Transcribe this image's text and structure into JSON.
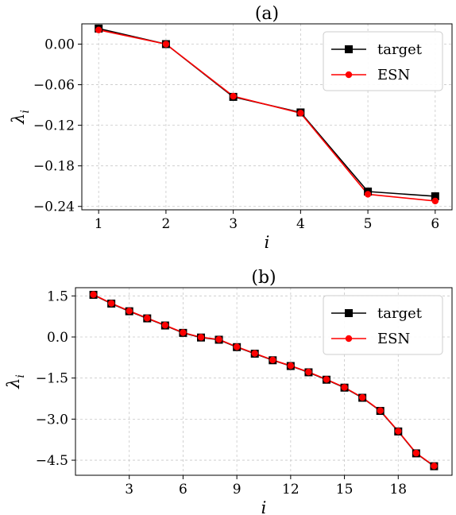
{
  "chart_data": [
    {
      "type": "line",
      "title": "(a)",
      "xlabel": "i",
      "ylabel": "λ",
      "ylabel_sub": "i",
      "xlim": [
        0.75,
        6.25
      ],
      "ylim": [
        -0.245,
        0.03
      ],
      "xticks": [
        1,
        2,
        3,
        4,
        5,
        6
      ],
      "xtick_labels": [
        "1",
        "2",
        "3",
        "4",
        "5",
        "6"
      ],
      "yticks": [
        0.0,
        -0.06,
        -0.12,
        -0.18,
        -0.24
      ],
      "ytick_labels": [
        "0.00",
        "−0.06",
        "−0.12",
        "−0.18",
        "−0.24"
      ],
      "grid": true,
      "legend_position": "top-right",
      "x": [
        1,
        2,
        3,
        4,
        5,
        6
      ],
      "series": [
        {
          "name": "target",
          "color": "#000000",
          "marker": "square",
          "values": [
            0.023,
            0.0,
            -0.078,
            -0.101,
            -0.218,
            -0.225
          ]
        },
        {
          "name": "ESN",
          "color": "#ff0000",
          "marker": "circle",
          "values": [
            0.021,
            0.0,
            -0.077,
            -0.102,
            -0.222,
            -0.232
          ]
        }
      ]
    },
    {
      "type": "line",
      "title": "(b)",
      "xlabel": "i",
      "ylabel": "λ",
      "ylabel_sub": "i",
      "xlim": [
        0.0,
        21.0
      ],
      "ylim": [
        -5.05,
        1.8
      ],
      "xticks": [
        3,
        6,
        9,
        12,
        15,
        18
      ],
      "xtick_labels": [
        "3",
        "6",
        "9",
        "12",
        "15",
        "18"
      ],
      "yticks": [
        1.5,
        0.0,
        -1.5,
        -3.0,
        -4.5
      ],
      "ytick_labels": [
        "1.5",
        "0.0",
        "−1.5",
        "−3.0",
        "−4.5"
      ],
      "grid": true,
      "legend_position": "top-right",
      "x": [
        1,
        2,
        3,
        4,
        5,
        6,
        7,
        8,
        9,
        10,
        11,
        12,
        13,
        14,
        15,
        16,
        17,
        18,
        19,
        20
      ],
      "series": [
        {
          "name": "target",
          "color": "#000000",
          "marker": "square",
          "values": [
            1.54,
            1.22,
            0.94,
            0.68,
            0.42,
            0.15,
            -0.02,
            -0.1,
            -0.37,
            -0.61,
            -0.85,
            -1.06,
            -1.29,
            -1.56,
            -1.85,
            -2.22,
            -2.7,
            -3.45,
            -4.25,
            -4.72
          ]
        },
        {
          "name": "ESN",
          "color": "#ff0000",
          "marker": "circle",
          "values": [
            1.55,
            1.23,
            0.95,
            0.69,
            0.43,
            0.16,
            -0.01,
            -0.09,
            -0.36,
            -0.6,
            -0.84,
            -1.05,
            -1.28,
            -1.55,
            -1.84,
            -2.21,
            -2.69,
            -3.44,
            -4.24,
            -4.71
          ]
        }
      ]
    }
  ]
}
